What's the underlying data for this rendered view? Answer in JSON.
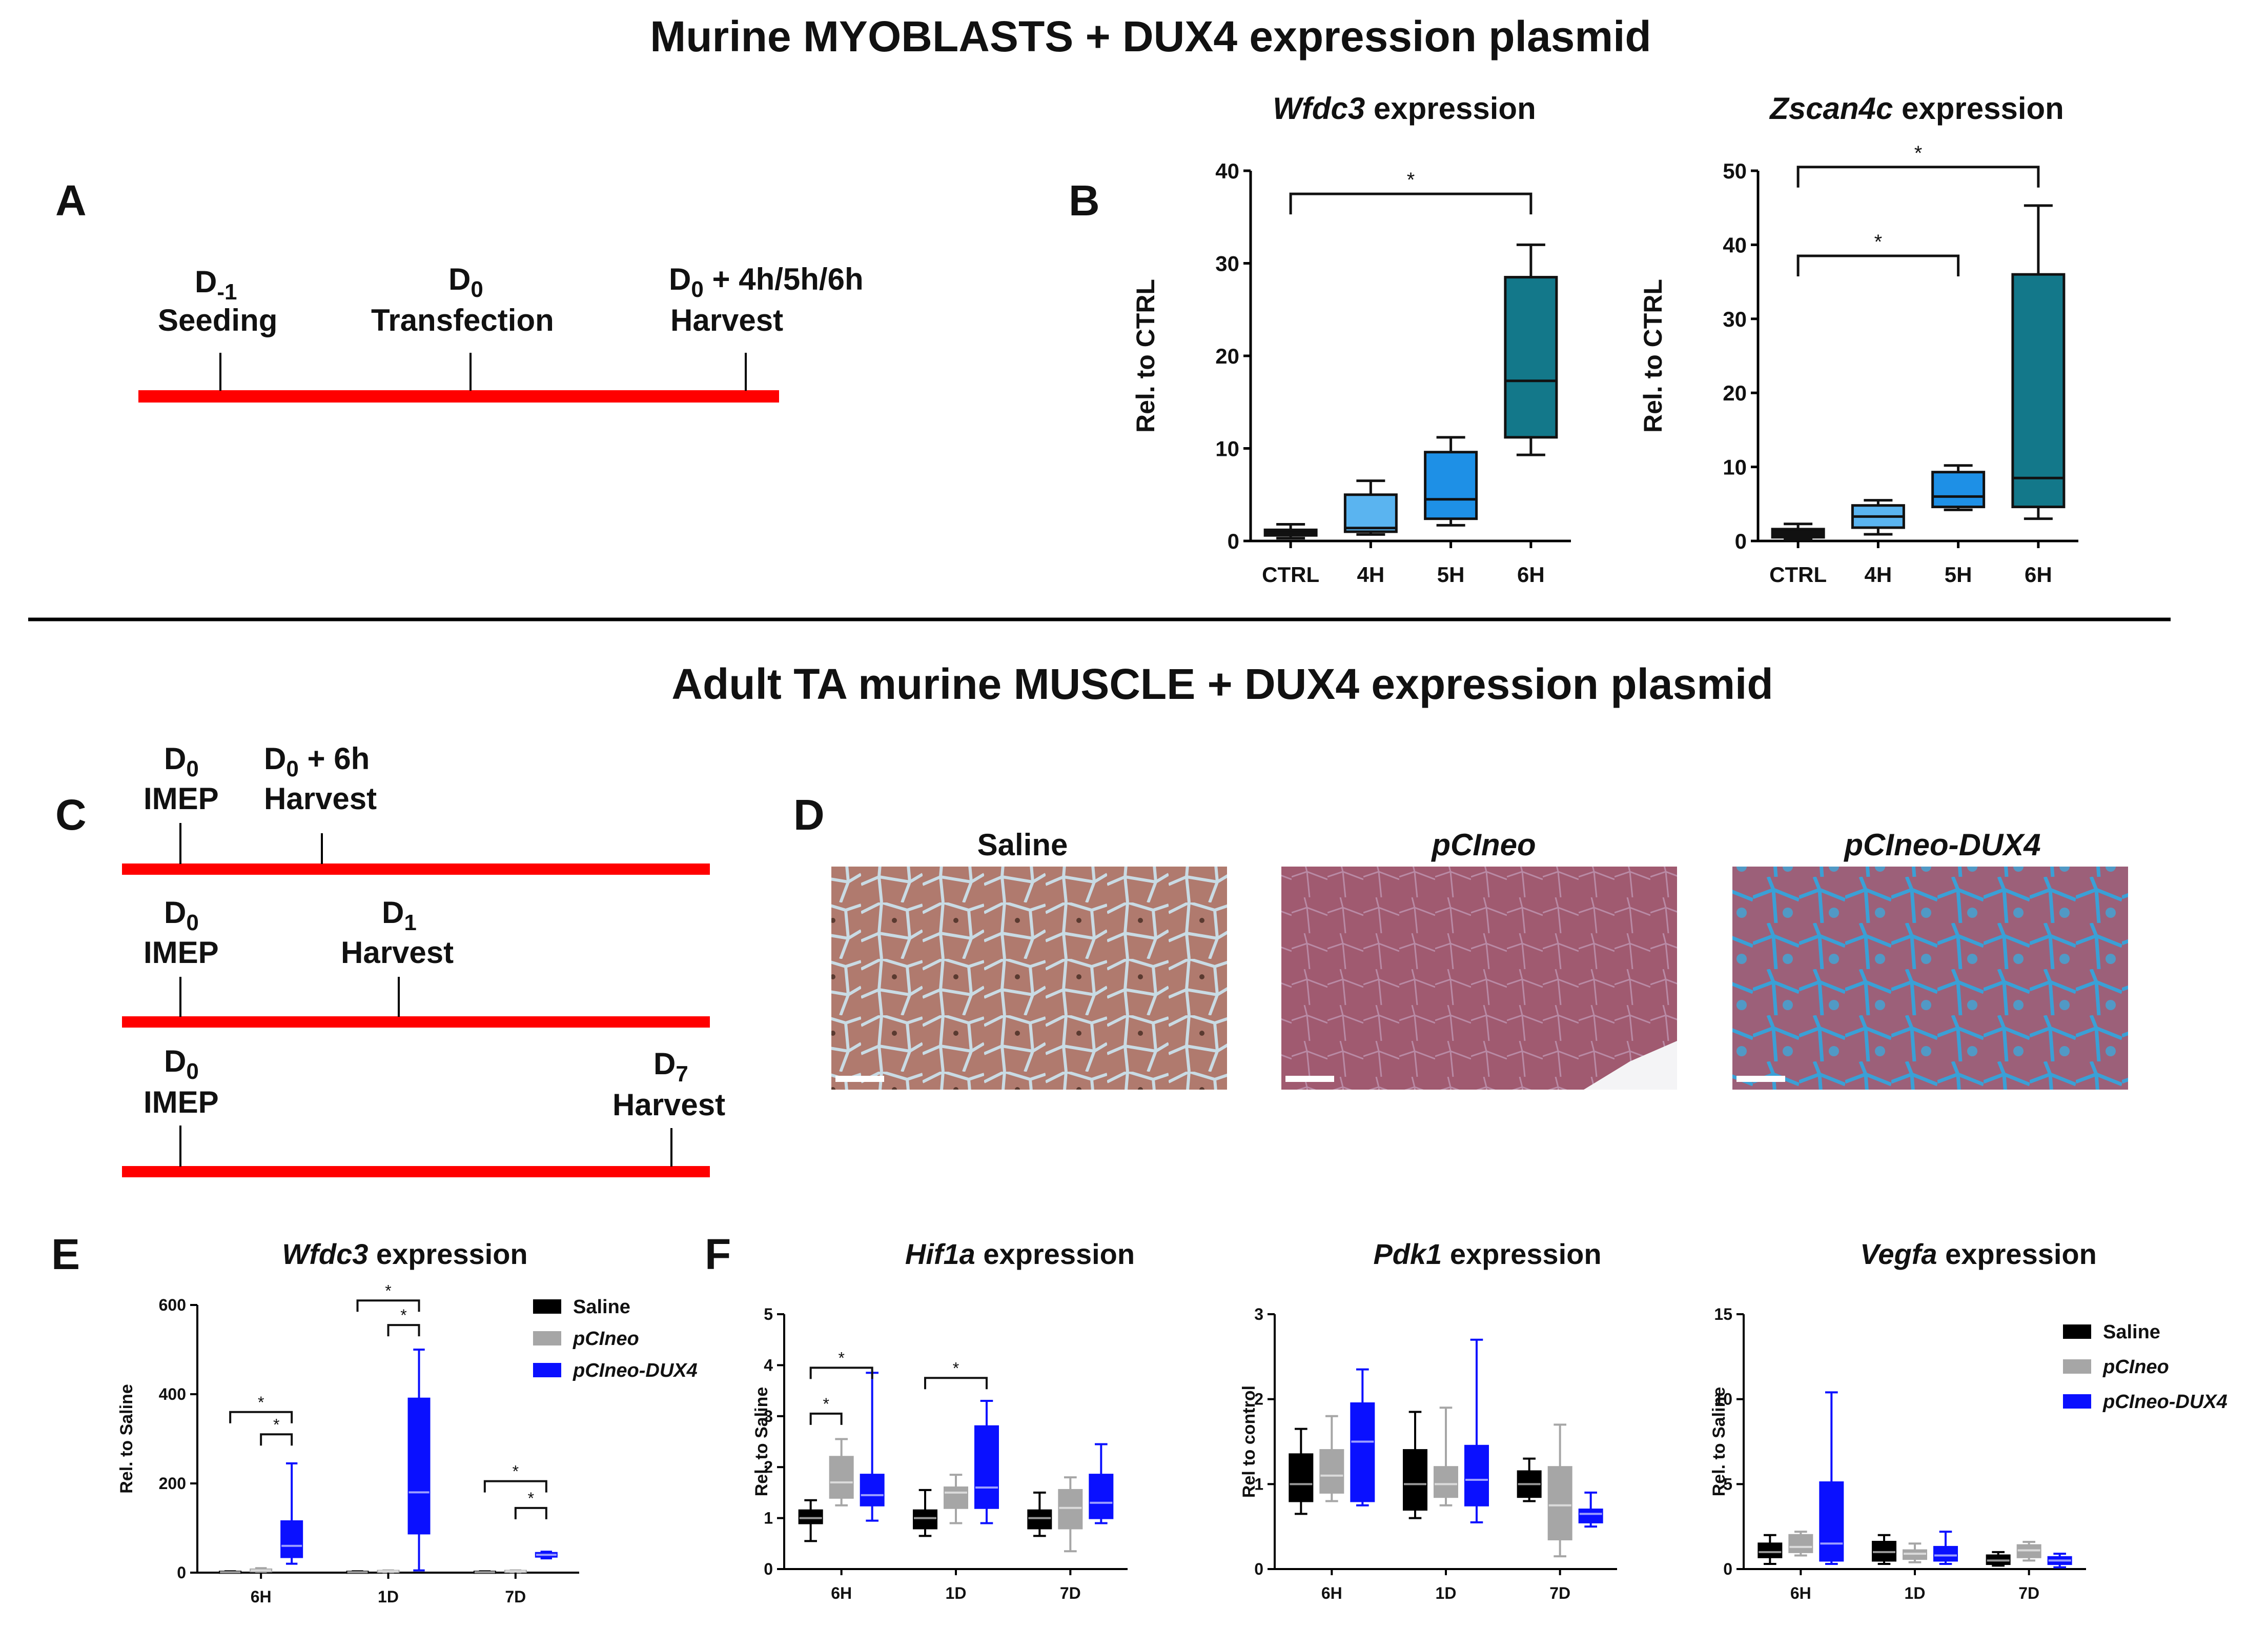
{
  "figure": {
    "top_title": "Murine MYOBLASTS + DUX4 expression plasmid",
    "mid_title": "Adult TA murine MUSCLE + DUX4 expression plasmid",
    "panels": {
      "A": "A",
      "B": "B",
      "C": "C",
      "D": "D",
      "E": "E",
      "F": "F"
    },
    "colors": {
      "timeline": "#ff0000",
      "ctrl": "#111111",
      "h4": "#5ab4f0",
      "h5": "#1e90e6",
      "h6": "#13788a",
      "saline": "#000000",
      "pcineo": "#a6a6a6",
      "dux4": "#0a10ff"
    }
  },
  "timeline_A": {
    "events": [
      {
        "day": "D",
        "sub": "-1",
        "extra": "",
        "label": "Seeding"
      },
      {
        "day": "D",
        "sub": "0",
        "extra": "",
        "label": "Transfection"
      },
      {
        "day": "D",
        "sub": "0",
        "extra": " + 4h/5h/6h",
        "label": "Harvest"
      }
    ]
  },
  "timelines_C": [
    {
      "events": [
        {
          "day": "D",
          "sub": "0",
          "extra": "",
          "label": "IMEP"
        },
        {
          "day": "D",
          "sub": "0",
          "extra": " + 6h",
          "label": "Harvest"
        }
      ]
    },
    {
      "events": [
        {
          "day": "D",
          "sub": "0",
          "extra": "",
          "label": "IMEP"
        },
        {
          "day": "D",
          "sub": "1",
          "extra": "",
          "label": "Harvest"
        }
      ]
    },
    {
      "events": [
        {
          "day": "D",
          "sub": "0",
          "extra": "",
          "label": "IMEP"
        },
        {
          "day": "D",
          "sub": "7",
          "extra": "",
          "label": "Harvest"
        }
      ]
    }
  ],
  "histology": {
    "labels": [
      "Saline",
      "pCIneo",
      "pCIneo-DUX4"
    ]
  },
  "chart_data": [
    {
      "id": "B1",
      "type": "box",
      "title_gene": "Wfdc3",
      "title_rest": " expression",
      "ylabel": "Rel. to CTRL",
      "ylim": [
        0,
        40
      ],
      "yticks": [
        0,
        10,
        20,
        30,
        40
      ],
      "categories": [
        "CTRL",
        "4H",
        "5H",
        "6H"
      ],
      "boxes": [
        {
          "min": 0.3,
          "q1": 0.6,
          "median": 0.9,
          "q3": 1.2,
          "max": 1.8,
          "color": "ctrl"
        },
        {
          "min": 0.7,
          "q1": 1.0,
          "median": 1.4,
          "q3": 5.0,
          "max": 6.5,
          "color": "h4"
        },
        {
          "min": 1.7,
          "q1": 2.4,
          "median": 4.5,
          "q3": 9.6,
          "max": 11.2,
          "color": "h5"
        },
        {
          "min": 9.3,
          "q1": 11.2,
          "median": 17.3,
          "q3": 28.5,
          "max": 32.0,
          "color": "h6"
        }
      ],
      "sig": [
        {
          "from": 0,
          "to": 3,
          "y": 37.5,
          "label": "*"
        }
      ]
    },
    {
      "id": "B2",
      "type": "box",
      "title_gene": "Zscan4c",
      "title_rest": " expression",
      "ylabel": "Rel. to CTRL",
      "ylim": [
        0,
        50
      ],
      "yticks": [
        0,
        10,
        20,
        30,
        40,
        50
      ],
      "categories": [
        "CTRL",
        "4H",
        "5H",
        "6H"
      ],
      "boxes": [
        {
          "min": 0.2,
          "q1": 0.5,
          "median": 1.0,
          "q3": 1.6,
          "max": 2.3,
          "color": "ctrl"
        },
        {
          "min": 0.9,
          "q1": 1.8,
          "median": 3.3,
          "q3": 4.8,
          "max": 5.5,
          "color": "h4"
        },
        {
          "min": 4.2,
          "q1": 4.6,
          "median": 6.0,
          "q3": 9.3,
          "max": 10.2,
          "color": "h5"
        },
        {
          "min": 3.0,
          "q1": 4.6,
          "median": 8.5,
          "q3": 36.0,
          "max": 45.3,
          "color": "h6"
        }
      ],
      "sig": [
        {
          "from": 0,
          "to": 3,
          "y": 50.5,
          "label": "*"
        },
        {
          "from": 0,
          "to": 2,
          "y": 38.5,
          "label": "*"
        }
      ]
    },
    {
      "id": "E",
      "type": "box",
      "title_gene": "Wfdc3",
      "title_rest": "  expression",
      "ylabel": "Rel. to Saline",
      "ylim": [
        0,
        600
      ],
      "yticks": [
        0,
        200,
        400,
        600
      ],
      "groups": [
        "6H",
        "1D",
        "7D"
      ],
      "series": [
        "Saline",
        "pCIneo",
        "pCIneo-DUX4"
      ],
      "boxes": [
        [
          {
            "min": 0.5,
            "q1": 1,
            "median": 1,
            "q3": 2,
            "max": 3
          },
          {
            "min": 2,
            "q1": 3,
            "median": 5,
            "q3": 7,
            "max": 10
          },
          {
            "min": 20,
            "q1": 35,
            "median": 60,
            "q3": 115,
            "max": 245
          }
        ],
        [
          {
            "min": 0.5,
            "q1": 1,
            "median": 1,
            "q3": 2,
            "max": 3
          },
          {
            "min": 1,
            "q1": 2,
            "median": 3,
            "q3": 4,
            "max": 5
          },
          {
            "min": 5,
            "q1": 88,
            "median": 180,
            "q3": 390,
            "max": 500
          }
        ],
        [
          {
            "min": 0.5,
            "q1": 1,
            "median": 1,
            "q3": 2,
            "max": 3
          },
          {
            "min": 1,
            "q1": 2,
            "median": 3,
            "q3": 4,
            "max": 5
          },
          {
            "min": 32,
            "q1": 36,
            "median": 40,
            "q3": 44,
            "max": 47
          }
        ]
      ],
      "sig": [
        {
          "group": 0,
          "from": 0,
          "to": 2,
          "y": 360,
          "label": "*"
        },
        {
          "group": 0,
          "from": 1,
          "to": 2,
          "y": 310,
          "label": "*"
        },
        {
          "group": 1,
          "from": 0,
          "to": 2,
          "y": 610,
          "label": "*"
        },
        {
          "group": 1,
          "from": 1,
          "to": 2,
          "y": 555,
          "label": "*"
        },
        {
          "group": 2,
          "from": 0,
          "to": 2,
          "y": 205,
          "label": "*"
        },
        {
          "group": 2,
          "from": 1,
          "to": 2,
          "y": 145,
          "label": "*"
        }
      ],
      "legend": [
        "Saline",
        "pCIneo",
        "pCIneo-DUX4"
      ]
    },
    {
      "id": "F1",
      "type": "box",
      "title_gene": "Hif1a",
      "title_rest": "  expression",
      "ylabel": "Rel. to Saline",
      "ylim": [
        0,
        5
      ],
      "yticks": [
        0,
        1,
        2,
        3,
        4,
        5
      ],
      "groups": [
        "6H",
        "1D",
        "7D"
      ],
      "series": [
        "Saline",
        "pCIneo",
        "pCIneo-DUX4"
      ],
      "boxes": [
        [
          {
            "min": 0.55,
            "q1": 0.9,
            "median": 1.0,
            "q3": 1.15,
            "max": 1.35
          },
          {
            "min": 1.25,
            "q1": 1.4,
            "median": 1.7,
            "q3": 2.2,
            "max": 2.55
          },
          {
            "min": 0.95,
            "q1": 1.25,
            "median": 1.45,
            "q3": 1.85,
            "max": 3.85
          }
        ],
        [
          {
            "min": 0.65,
            "q1": 0.8,
            "median": 1.0,
            "q3": 1.15,
            "max": 1.55
          },
          {
            "min": 0.9,
            "q1": 1.2,
            "median": 1.5,
            "q3": 1.6,
            "max": 1.85
          },
          {
            "min": 0.9,
            "q1": 1.2,
            "median": 1.6,
            "q3": 2.8,
            "max": 3.3
          }
        ],
        [
          {
            "min": 0.65,
            "q1": 0.8,
            "median": 1.0,
            "q3": 1.15,
            "max": 1.5
          },
          {
            "min": 0.35,
            "q1": 0.8,
            "median": 1.2,
            "q3": 1.55,
            "max": 1.8
          },
          {
            "min": 0.9,
            "q1": 1.0,
            "median": 1.3,
            "q3": 1.85,
            "max": 2.45
          }
        ]
      ],
      "sig": [
        {
          "group": 0,
          "from": 0,
          "to": 2,
          "y": 3.95,
          "label": "*"
        },
        {
          "group": 0,
          "from": 0,
          "to": 1,
          "y": 3.05,
          "label": "*"
        },
        {
          "group": 1,
          "from": 0,
          "to": 2,
          "y": 3.75,
          "label": "*"
        }
      ]
    },
    {
      "id": "F2",
      "type": "box",
      "title_gene": "Pdk1",
      "title_rest": " expression",
      "ylabel": "Rel to control",
      "ylim": [
        0,
        3
      ],
      "yticks": [
        0,
        1,
        2,
        3
      ],
      "groups": [
        "6H",
        "1D",
        "7D"
      ],
      "series": [
        "Saline",
        "pCIneo",
        "pCIneo-DUX4"
      ],
      "boxes": [
        [
          {
            "min": 0.65,
            "q1": 0.8,
            "median": 1.0,
            "q3": 1.35,
            "max": 1.65
          },
          {
            "min": 0.8,
            "q1": 0.9,
            "median": 1.1,
            "q3": 1.4,
            "max": 1.8
          },
          {
            "min": 0.75,
            "q1": 0.8,
            "median": 1.5,
            "q3": 1.95,
            "max": 2.35
          }
        ],
        [
          {
            "min": 0.6,
            "q1": 0.7,
            "median": 1.0,
            "q3": 1.4,
            "max": 1.85
          },
          {
            "min": 0.75,
            "q1": 0.85,
            "median": 1.0,
            "q3": 1.2,
            "max": 1.9
          },
          {
            "min": 0.55,
            "q1": 0.75,
            "median": 1.05,
            "q3": 1.45,
            "max": 2.7
          }
        ],
        [
          {
            "min": 0.8,
            "q1": 0.85,
            "median": 1.0,
            "q3": 1.15,
            "max": 1.3
          },
          {
            "min": 0.15,
            "q1": 0.35,
            "median": 0.75,
            "q3": 1.2,
            "max": 1.7
          },
          {
            "min": 0.5,
            "q1": 0.55,
            "median": 0.65,
            "q3": 0.7,
            "max": 0.9
          }
        ]
      ],
      "sig": []
    },
    {
      "id": "F3",
      "type": "box",
      "title_gene": "Vegfa",
      "title_rest": " expression",
      "ylabel": "Rel. to Saline",
      "ylim": [
        0,
        15
      ],
      "yticks": [
        0,
        5,
        10,
        15
      ],
      "groups": [
        "6H",
        "1D",
        "7D"
      ],
      "series": [
        "Saline",
        "pCIneo",
        "pCIneo-DUX4"
      ],
      "boxes": [
        [
          {
            "min": 0.3,
            "q1": 0.7,
            "median": 1.0,
            "q3": 1.5,
            "max": 2.0
          },
          {
            "min": 0.8,
            "q1": 1.0,
            "median": 1.3,
            "q3": 2.0,
            "max": 2.2
          },
          {
            "min": 0.3,
            "q1": 0.5,
            "median": 1.5,
            "q3": 5.1,
            "max": 10.4
          }
        ],
        [
          {
            "min": 0.3,
            "q1": 0.5,
            "median": 1.0,
            "q3": 1.6,
            "max": 2.0
          },
          {
            "min": 0.4,
            "q1": 0.6,
            "median": 0.9,
            "q3": 1.1,
            "max": 1.5
          },
          {
            "min": 0.3,
            "q1": 0.5,
            "median": 0.8,
            "q3": 1.3,
            "max": 2.2
          }
        ],
        [
          {
            "min": 0.2,
            "q1": 0.3,
            "median": 0.5,
            "q3": 0.8,
            "max": 1.0
          },
          {
            "min": 0.5,
            "q1": 0.7,
            "median": 1.1,
            "q3": 1.4,
            "max": 1.6
          },
          {
            "min": 0.1,
            "q1": 0.3,
            "median": 0.5,
            "q3": 0.7,
            "max": 0.9
          }
        ]
      ],
      "sig": [],
      "legend": [
        "Saline",
        "pCIneo",
        "pCIneo-DUX4"
      ]
    }
  ]
}
